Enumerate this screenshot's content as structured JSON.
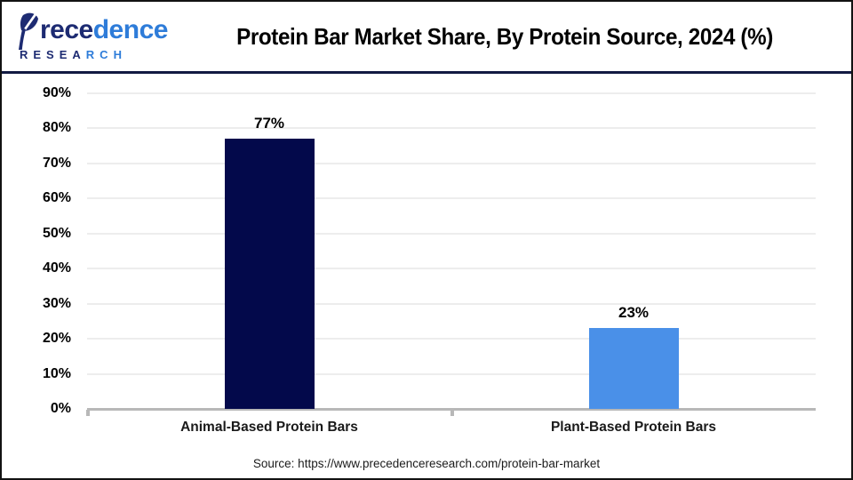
{
  "header": {
    "title": "Protein Bar Market Share, By Protein Source, 2024 (%)",
    "logo": {
      "name": "Precedence",
      "name_dark_part": "rece",
      "name_light_part": "dence",
      "research_dark_part": "RESEA",
      "research_light_part": "RCH"
    }
  },
  "chart_data": {
    "type": "bar",
    "title": "Protein Bar Market Share, By Protein Source, 2024 (%)",
    "categories": [
      "Animal-Based Protein Bars",
      "Plant-Based Protein Bars"
    ],
    "values": [
      77,
      23
    ],
    "value_labels": [
      "77%",
      "23%"
    ],
    "bar_colors": [
      "#03094b",
      "#4a90e8"
    ],
    "xlabel": "",
    "ylabel": "",
    "ylim": [
      0,
      90
    ],
    "ytick_step": 10,
    "ytick_labels": [
      "0%",
      "10%",
      "20%",
      "30%",
      "40%",
      "50%",
      "60%",
      "70%",
      "80%",
      "90%"
    ],
    "grid": true,
    "legend": false
  },
  "footer": {
    "source": "Source: https://www.precedenceresearch.com/protein-bar-market"
  },
  "colors": {
    "bar_animal": "#03094b",
    "bar_plant": "#4a90e8",
    "divider_navy": "#121a42",
    "logo_navy": "#1d2b72",
    "logo_blue": "#2e7cd9",
    "gridline": "#ededed",
    "axis": "#b8b8b8"
  }
}
